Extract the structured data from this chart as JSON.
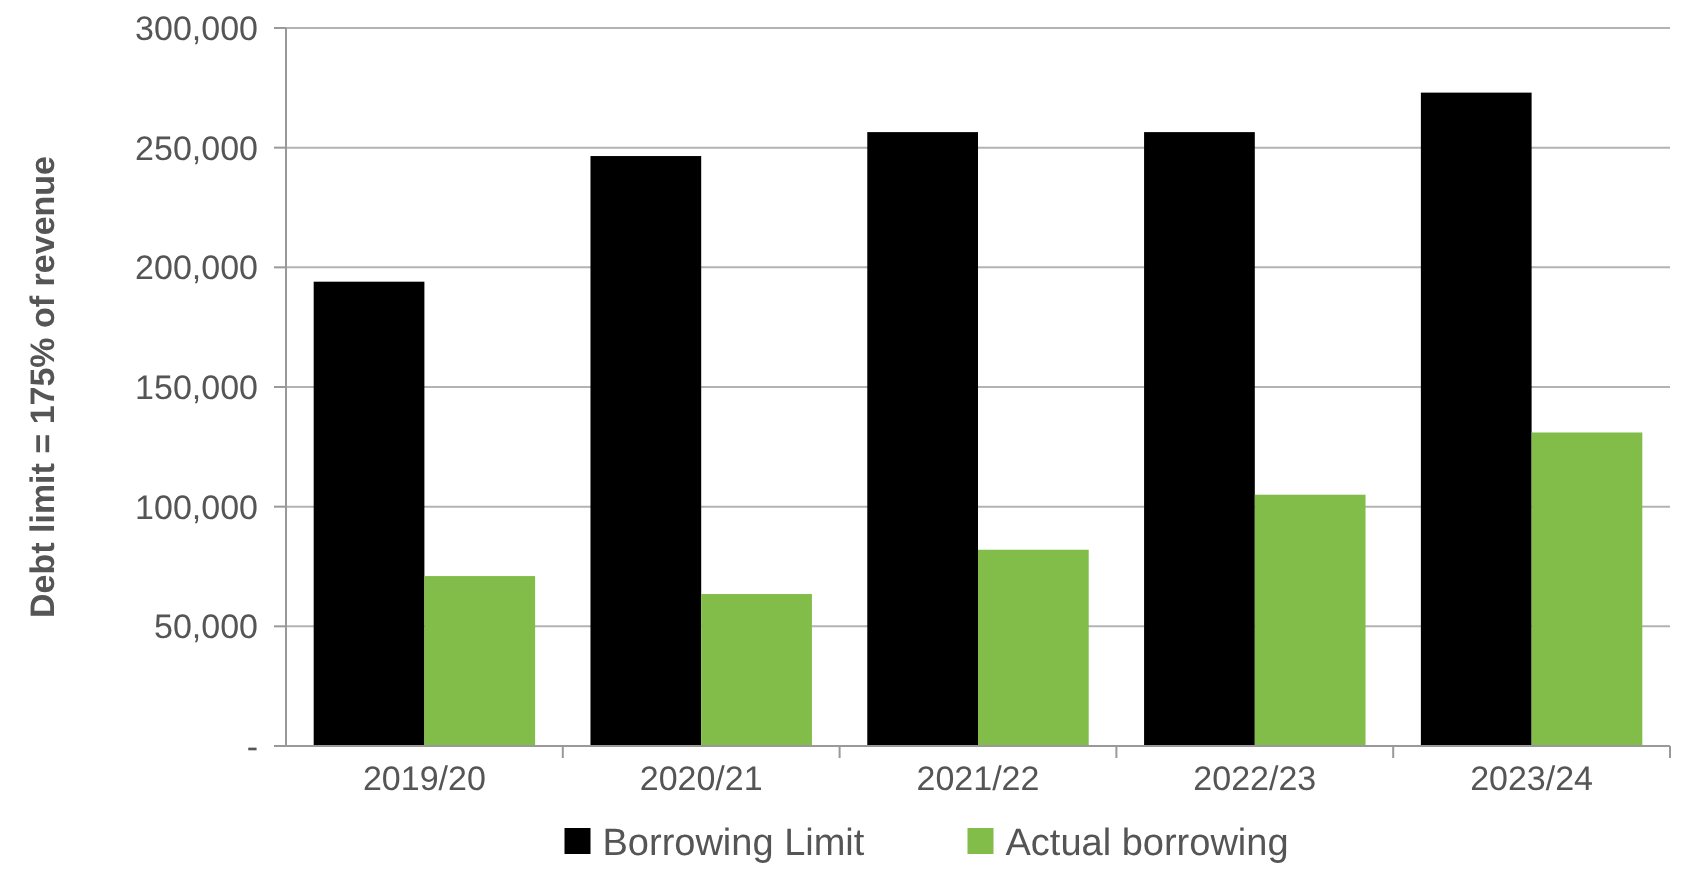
{
  "chart_data": {
    "type": "bar",
    "ylabel": "Debt limit = 175% of revenue",
    "categories": [
      "2019/20",
      "2020/21",
      "2021/22",
      "2022/23",
      "2023/24"
    ],
    "series": [
      {
        "name": "Borrowing Limit",
        "color": "#000000",
        "values": [
          194000,
          246500,
          256500,
          256500,
          273000
        ]
      },
      {
        "name": "Actual borrowing",
        "color": "#82bd4a",
        "values": [
          71000,
          63500,
          82000,
          105000,
          131000
        ]
      }
    ],
    "ylim": [
      0,
      300000
    ],
    "yticks": [
      {
        "value": 0,
        "label": "-"
      },
      {
        "value": 50000,
        "label": "50,000"
      },
      {
        "value": 100000,
        "label": "100,000"
      },
      {
        "value": 150000,
        "label": "150,000"
      },
      {
        "value": 200000,
        "label": "200,000"
      },
      {
        "value": 250000,
        "label": "250,000"
      },
      {
        "value": 300000,
        "label": "300,000"
      }
    ],
    "grid": "y",
    "legend": "bottom"
  }
}
